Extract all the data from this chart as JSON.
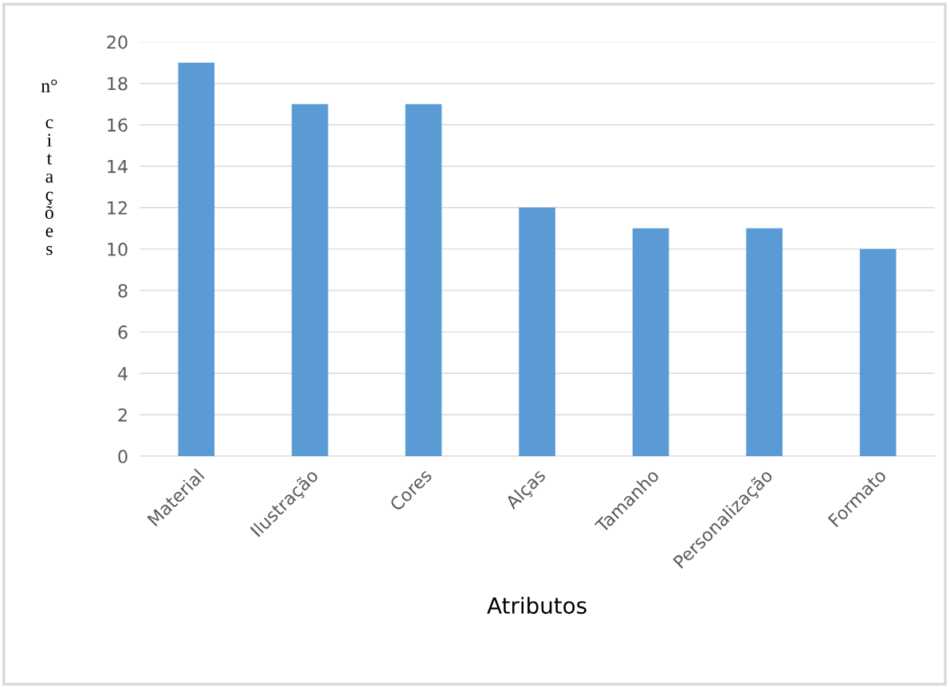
{
  "chart_data": {
    "type": "bar",
    "xlabel": "Atributos",
    "ylabel": "n° citações",
    "categories": [
      "Material",
      "Ilustração",
      "Cores",
      "Alças",
      "Tamanho",
      "Personalização",
      "Formato"
    ],
    "values": [
      19,
      17,
      17,
      12,
      11,
      11,
      10
    ],
    "color": "#5b9bd5",
    "ylim": [
      0,
      20
    ],
    "yticks": [
      0,
      2,
      4,
      6,
      8,
      10,
      12,
      14,
      16,
      18,
      20
    ],
    "grid": "y"
  }
}
